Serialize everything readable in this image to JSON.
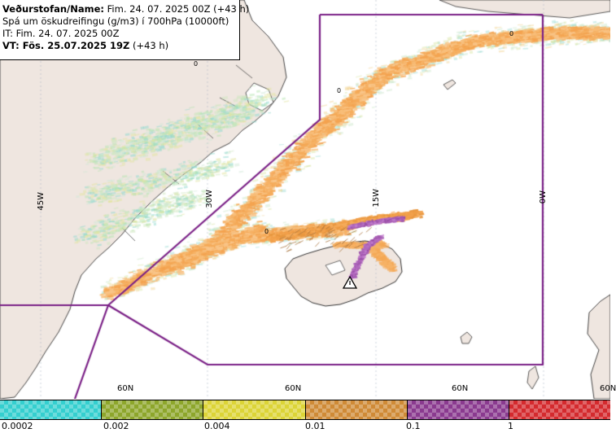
{
  "header": {
    "line1_label": "Veðurstofan/Name:",
    "line1_value": "Fim. 24. 07. 2025 00Z (+43 h)",
    "line2": "Spá um öskudreifingu (g/m3) í 700hPa (10000ft)",
    "line3": "IT: Fim. 24. 07. 2025 00Z",
    "line4_label": "VT: Fös. 25.07.2025 19Z",
    "line4_value": "(+43 h)"
  },
  "map": {
    "longitude_labels": [
      "45W",
      "30W",
      "15W",
      "0W"
    ],
    "latitude_labels": [
      "60N",
      "60N",
      "60N",
      "60N"
    ],
    "contour_labels": [
      "0",
      "0",
      "0",
      "0"
    ],
    "volcano_icon": "warning-triangle-icon",
    "colors": {
      "land": "#efe6e0",
      "coast": "#333333",
      "boundary": "#7a1f86",
      "grid": "#b0b8c8",
      "ash_low": "#f6b063",
      "ash_high": "#a45bb0"
    }
  },
  "legend": {
    "swatches": [
      {
        "color": "#34cfcf",
        "name": "teal"
      },
      {
        "color": "#8da62b",
        "name": "olive"
      },
      {
        "color": "#dcd436",
        "name": "yellow"
      },
      {
        "color": "#cf8a36",
        "name": "orange"
      },
      {
        "color": "#8a3a8f",
        "name": "purple"
      },
      {
        "color": "#d42a2e",
        "name": "red"
      }
    ],
    "labels": [
      "0.0002",
      "0.002",
      "0.004",
      "0.01",
      "0.1",
      "1"
    ]
  }
}
